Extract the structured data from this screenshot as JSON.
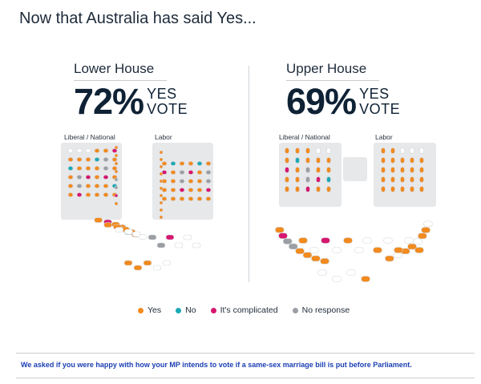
{
  "title": "Now that Australia has said Yes...",
  "colors": {
    "yes": "#f28a1e",
    "no": "#1aa9b5",
    "complicated": "#d6166f",
    "no_response": "#9b9ea2",
    "empty_seat": "#ffffff",
    "seat_outline": "#d4d7da",
    "furniture": "#e7e8ea"
  },
  "chart_data": [
    {
      "type": "parliament-seating",
      "house": "Lower House",
      "yes_vote_pct": 72,
      "pct_label": "72%",
      "vote_label_top": "YES",
      "vote_label_bottom": "VOTE",
      "sections": [
        "Liberal / National",
        "Labor"
      ],
      "categories": [
        "Yes",
        "No",
        "It's complicated",
        "No response"
      ]
    },
    {
      "type": "parliament-seating",
      "house": "Upper House",
      "yes_vote_pct": 69,
      "pct_label": "69%",
      "vote_label_top": "YES",
      "vote_label_bottom": "VOTE",
      "sections": [
        "Liberal / National",
        "Labor"
      ],
      "categories": [
        "Yes",
        "No",
        "It's complicated",
        "No response"
      ]
    }
  ],
  "legend": [
    {
      "label": "Yes",
      "color": "#f28a1e"
    },
    {
      "label": "No",
      "color": "#1aa9b5"
    },
    {
      "label": "It's complicated",
      "color": "#d6166f"
    },
    {
      "label": "No response",
      "color": "#9b9ea2"
    }
  ],
  "footnote": "We asked if you were happy with how your MP intends to vote if a same-sex marriage bill is put before Parliament."
}
